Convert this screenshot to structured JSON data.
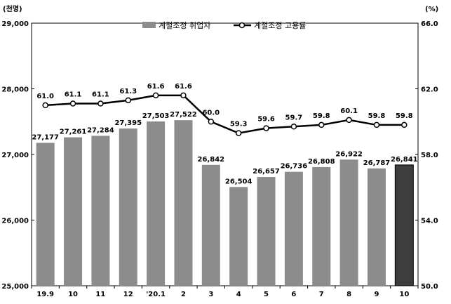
{
  "chart_data": {
    "type": "bar+line",
    "categories": [
      "19.9",
      "10",
      "11",
      "12",
      "'20.1",
      "2",
      "3",
      "4",
      "5",
      "6",
      "7",
      "8",
      "9",
      "10"
    ],
    "series": [
      {
        "name": "계절조정 취업자",
        "axis": "left",
        "type": "bar",
        "values": [
          27177,
          27261,
          27284,
          27395,
          27503,
          27522,
          26842,
          26504,
          26657,
          26736,
          26808,
          26922,
          26787,
          26841
        ],
        "labels": [
          "27,177",
          "27,261",
          "27,284",
          "27,395",
          "27,503",
          "27,522",
          "26,842",
          "26,504",
          "26,657",
          "26,736",
          "26,808",
          "26,922",
          "26,787",
          "26,841"
        ]
      },
      {
        "name": "계절조정 고용률",
        "axis": "right",
        "type": "line",
        "values": [
          61.0,
          61.1,
          61.1,
          61.3,
          61.6,
          61.6,
          60.0,
          59.3,
          59.6,
          59.7,
          59.8,
          60.1,
          59.8,
          59.8
        ],
        "labels": [
          "61.0",
          "61.1",
          "61.1",
          "61.3",
          "61.6",
          "61.6",
          "60.0",
          "59.3",
          "59.6",
          "59.7",
          "59.8",
          "60.1",
          "59.8",
          "59.8"
        ]
      }
    ],
    "left_axis": {
      "unit": "(천명)",
      "ylim": [
        25000,
        29000
      ],
      "ticks": [
        25000,
        26000,
        27000,
        28000,
        29000
      ],
      "tick_labels": [
        "25,000",
        "26,000",
        "27,000",
        "28,000",
        "29,000"
      ]
    },
    "right_axis": {
      "unit": "(%)",
      "ylim": [
        50.0,
        66.0
      ],
      "ticks": [
        50.0,
        54.0,
        58.0,
        62.0,
        66.0
      ],
      "tick_labels": [
        "50.0",
        "54.0",
        "58.0",
        "62.0",
        "66.0"
      ]
    },
    "legend_position": "top-center",
    "grid": false,
    "colors": {
      "bar": "#8c8c8c",
      "bar_highlight": "#3d3d3d",
      "line": "#000000",
      "marker_fill": "#ffffff"
    }
  }
}
